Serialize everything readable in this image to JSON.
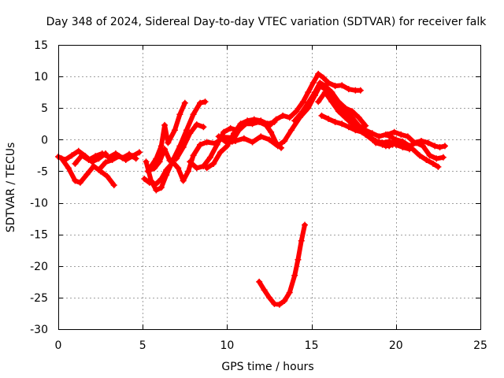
{
  "chart_data": {
    "type": "scatter",
    "title": "Day 348 of 2024, Sidereal Day-to-day VTEC variation (SDTVAR) for receiver falk",
    "xlabel": "GPS time / hours",
    "ylabel": "SDTVAR / TECUs",
    "xlim": [
      0,
      25
    ],
    "ylim": [
      -30,
      15
    ],
    "xticks": [
      0,
      5,
      10,
      15,
      20,
      25
    ],
    "yticks": [
      15,
      10,
      5,
      0,
      -5,
      -10,
      -15,
      -20,
      -25,
      -30
    ],
    "grid": true,
    "marker": "+",
    "color": "#ff0000",
    "series": [
      {
        "name": "track-1",
        "points": [
          [
            0.0,
            -2.7
          ],
          [
            0.4,
            -3.2
          ],
          [
            0.8,
            -2.5
          ],
          [
            1.2,
            -1.8
          ],
          [
            1.6,
            -2.6
          ],
          [
            2.0,
            -3.5
          ],
          [
            2.4,
            -3.0
          ],
          [
            2.8,
            -2.2
          ]
        ]
      },
      {
        "name": "track-2",
        "points": [
          [
            0.2,
            -3.0
          ],
          [
            0.6,
            -4.5
          ],
          [
            1.0,
            -6.5
          ],
          [
            1.3,
            -6.8
          ],
          [
            1.7,
            -5.5
          ],
          [
            2.1,
            -4.2
          ],
          [
            2.5,
            -5.0
          ],
          [
            2.9,
            -5.8
          ],
          [
            3.3,
            -7.2
          ]
        ]
      },
      {
        "name": "track-3",
        "points": [
          [
            1.0,
            -3.8
          ],
          [
            1.4,
            -2.5
          ],
          [
            1.8,
            -3.2
          ],
          [
            2.2,
            -2.6
          ],
          [
            2.6,
            -2.2
          ],
          [
            3.0,
            -2.8
          ],
          [
            3.4,
            -2.2
          ],
          [
            3.8,
            -2.9
          ],
          [
            4.2,
            -2.3
          ],
          [
            4.6,
            -3.0
          ]
        ]
      },
      {
        "name": "track-4",
        "points": [
          [
            2.4,
            -4.8
          ],
          [
            2.8,
            -3.6
          ],
          [
            3.2,
            -3.2
          ],
          [
            3.6,
            -2.6
          ],
          [
            4.0,
            -3.2
          ],
          [
            4.4,
            -2.6
          ],
          [
            4.8,
            -2.0
          ]
        ]
      },
      {
        "name": "track-5",
        "points": [
          [
            5.1,
            -6.2
          ],
          [
            5.4,
            -6.8
          ],
          [
            5.8,
            -7.0
          ],
          [
            6.1,
            -6.2
          ],
          [
            6.4,
            -4.8
          ],
          [
            6.8,
            -3.6
          ],
          [
            7.1,
            -4.5
          ],
          [
            7.4,
            -6.5
          ],
          [
            7.7,
            -5.0
          ],
          [
            8.0,
            -2.5
          ],
          [
            8.4,
            -0.8
          ],
          [
            8.8,
            -0.4
          ],
          [
            9.3,
            -0.6
          ],
          [
            9.8,
            0.4
          ],
          [
            10.3,
            0.3
          ]
        ]
      },
      {
        "name": "track-6",
        "points": [
          [
            5.2,
            -3.5
          ],
          [
            5.5,
            -6.5
          ],
          [
            5.8,
            -8.0
          ],
          [
            6.1,
            -7.6
          ],
          [
            6.4,
            -5.6
          ],
          [
            6.8,
            -3.2
          ],
          [
            7.2,
            -1.0
          ],
          [
            7.6,
            1.5
          ],
          [
            8.0,
            4.0
          ],
          [
            8.4,
            5.8
          ],
          [
            8.7,
            6.0
          ]
        ]
      },
      {
        "name": "track-7",
        "points": [
          [
            5.5,
            -4.2
          ],
          [
            5.8,
            -3.0
          ],
          [
            6.1,
            -1.0
          ],
          [
            6.3,
            2.3
          ],
          [
            6.5,
            -0.5
          ],
          [
            6.9,
            1.5
          ],
          [
            7.2,
            4.0
          ],
          [
            7.5,
            5.8
          ]
        ]
      },
      {
        "name": "track-8",
        "points": [
          [
            5.3,
            -5.0
          ],
          [
            5.7,
            -4.5
          ],
          [
            6.0,
            -3.5
          ],
          [
            6.3,
            -1.5
          ],
          [
            6.6,
            -3.3
          ],
          [
            7.0,
            -3.0
          ],
          [
            7.4,
            -1.2
          ],
          [
            7.8,
            1.0
          ],
          [
            8.2,
            2.4
          ],
          [
            8.6,
            2.0
          ]
        ]
      },
      {
        "name": "track-9",
        "points": [
          [
            7.8,
            -3.5
          ],
          [
            8.2,
            -4.5
          ],
          [
            8.6,
            -4.2
          ],
          [
            9.0,
            -2.8
          ],
          [
            9.4,
            -0.8
          ],
          [
            9.8,
            1.2
          ],
          [
            10.2,
            1.8
          ],
          [
            10.6,
            1.5
          ]
        ]
      },
      {
        "name": "track-10",
        "points": [
          [
            8.8,
            -4.5
          ],
          [
            9.2,
            -3.8
          ],
          [
            9.6,
            -2.0
          ],
          [
            10.0,
            -1.0
          ],
          [
            10.4,
            1.0
          ],
          [
            10.8,
            2.5
          ],
          [
            11.2,
            3.0
          ],
          [
            11.6,
            3.2
          ],
          [
            12.0,
            3.0
          ],
          [
            12.4,
            2.5
          ],
          [
            12.8,
            2.8
          ]
        ]
      },
      {
        "name": "track-11",
        "points": [
          [
            9.5,
            0.5
          ],
          [
            10.0,
            -0.5
          ],
          [
            10.5,
            -0.2
          ],
          [
            11.0,
            0.2
          ],
          [
            11.5,
            -0.4
          ],
          [
            12.0,
            0.5
          ],
          [
            12.5,
            0.0
          ],
          [
            13.0,
            -1.0
          ],
          [
            13.4,
            -0.2
          ],
          [
            13.8,
            1.5
          ],
          [
            14.3,
            3.5
          ],
          [
            14.8,
            5.0
          ],
          [
            15.2,
            7.0
          ],
          [
            15.5,
            8.5
          ],
          [
            15.8,
            8.0
          ],
          [
            16.2,
            6.5
          ],
          [
            16.6,
            5.0
          ],
          [
            17.0,
            3.8
          ],
          [
            17.4,
            3.0
          ]
        ]
      },
      {
        "name": "track-12",
        "points": [
          [
            10.3,
            -0.3
          ],
          [
            10.7,
            1.5
          ],
          [
            11.1,
            2.5
          ],
          [
            11.5,
            2.5
          ],
          [
            11.9,
            2.8
          ],
          [
            12.3,
            2.3
          ],
          [
            12.6,
            1.2
          ],
          [
            12.9,
            -0.5
          ],
          [
            13.2,
            -1.3
          ]
        ]
      },
      {
        "name": "track-13",
        "points": [
          [
            12.5,
            2.2
          ],
          [
            12.9,
            3.2
          ],
          [
            13.3,
            3.8
          ],
          [
            13.7,
            3.5
          ],
          [
            14.1,
            4.5
          ],
          [
            14.5,
            6.0
          ],
          [
            14.8,
            7.5
          ],
          [
            15.1,
            9.0
          ],
          [
            15.4,
            10.4
          ],
          [
            15.7,
            9.8
          ],
          [
            16.0,
            9.0
          ],
          [
            16.4,
            8.5
          ],
          [
            16.8,
            8.6
          ],
          [
            17.2,
            8.0
          ],
          [
            17.6,
            7.8
          ],
          [
            17.9,
            7.8
          ]
        ]
      },
      {
        "name": "track-14",
        "points": [
          [
            14.0,
            3.0
          ],
          [
            14.4,
            4.2
          ],
          [
            14.8,
            5.8
          ],
          [
            15.2,
            7.5
          ],
          [
            15.5,
            9.0
          ],
          [
            15.8,
            8.5
          ],
          [
            16.2,
            7.5
          ],
          [
            16.6,
            6.0
          ],
          [
            17.0,
            5.0
          ],
          [
            17.4,
            4.5
          ],
          [
            17.8,
            3.5
          ],
          [
            18.2,
            2.2
          ]
        ]
      },
      {
        "name": "track-15",
        "points": [
          [
            15.4,
            6.0
          ],
          [
            15.8,
            7.5
          ],
          [
            16.2,
            6.0
          ],
          [
            16.6,
            4.5
          ],
          [
            17.0,
            3.5
          ],
          [
            17.4,
            2.5
          ],
          [
            17.8,
            1.5
          ],
          [
            18.2,
            0.8
          ],
          [
            18.6,
            0.0
          ],
          [
            19.0,
            -0.5
          ],
          [
            19.4,
            -1.0
          ],
          [
            19.8,
            -0.8
          ]
        ]
      },
      {
        "name": "track-16",
        "points": [
          [
            15.6,
            3.8
          ],
          [
            16.0,
            3.3
          ],
          [
            16.4,
            2.8
          ],
          [
            16.8,
            2.5
          ],
          [
            17.2,
            2.0
          ],
          [
            17.6,
            1.5
          ],
          [
            18.0,
            1.2
          ],
          [
            18.4,
            0.5
          ],
          [
            18.8,
            -0.2
          ],
          [
            19.2,
            -0.5
          ],
          [
            19.6,
            -0.3
          ],
          [
            20.0,
            -0.8
          ],
          [
            20.4,
            -1.2
          ],
          [
            20.8,
            -1.5
          ]
        ]
      },
      {
        "name": "track-17",
        "points": [
          [
            16.6,
            5.2
          ],
          [
            17.0,
            4.8
          ],
          [
            17.4,
            3.5
          ],
          [
            17.8,
            2.2
          ],
          [
            18.2,
            1.5
          ],
          [
            18.6,
            1.0
          ],
          [
            19.0,
            0.5
          ],
          [
            19.4,
            0.8
          ],
          [
            19.8,
            0.3
          ],
          [
            20.2,
            -0.5
          ],
          [
            20.6,
            -1.0
          ],
          [
            21.0,
            -1.5
          ],
          [
            21.4,
            -2.5
          ],
          [
            21.8,
            -3.2
          ],
          [
            22.2,
            -3.8
          ],
          [
            22.5,
            -4.3
          ]
        ]
      },
      {
        "name": "track-18",
        "points": [
          [
            18.8,
            -0.5
          ],
          [
            19.2,
            -0.8
          ],
          [
            19.6,
            -1.0
          ],
          [
            20.0,
            0.0
          ],
          [
            20.4,
            -0.3
          ],
          [
            20.8,
            -1.0
          ],
          [
            21.2,
            -0.5
          ],
          [
            21.6,
            -1.0
          ],
          [
            22.0,
            -2.5
          ],
          [
            22.4,
            -3.0
          ],
          [
            22.8,
            -2.8
          ]
        ]
      },
      {
        "name": "track-19",
        "points": [
          [
            19.5,
            0.8
          ],
          [
            19.9,
            1.2
          ],
          [
            20.3,
            0.8
          ],
          [
            20.7,
            0.5
          ],
          [
            21.1,
            -0.5
          ],
          [
            21.5,
            -0.2
          ],
          [
            21.9,
            -0.5
          ],
          [
            22.3,
            -1.0
          ],
          [
            22.6,
            -1.2
          ],
          [
            22.9,
            -1.0
          ]
        ]
      },
      {
        "name": "track-20",
        "points": [
          [
            11.9,
            -22.5
          ],
          [
            12.2,
            -23.8
          ],
          [
            12.5,
            -25.0
          ],
          [
            12.8,
            -26.0
          ],
          [
            13.1,
            -26.1
          ],
          [
            13.4,
            -25.5
          ],
          [
            13.7,
            -24.2
          ],
          [
            14.0,
            -21.5
          ],
          [
            14.2,
            -19.0
          ],
          [
            14.4,
            -16.0
          ],
          [
            14.6,
            -13.5
          ]
        ]
      }
    ]
  }
}
